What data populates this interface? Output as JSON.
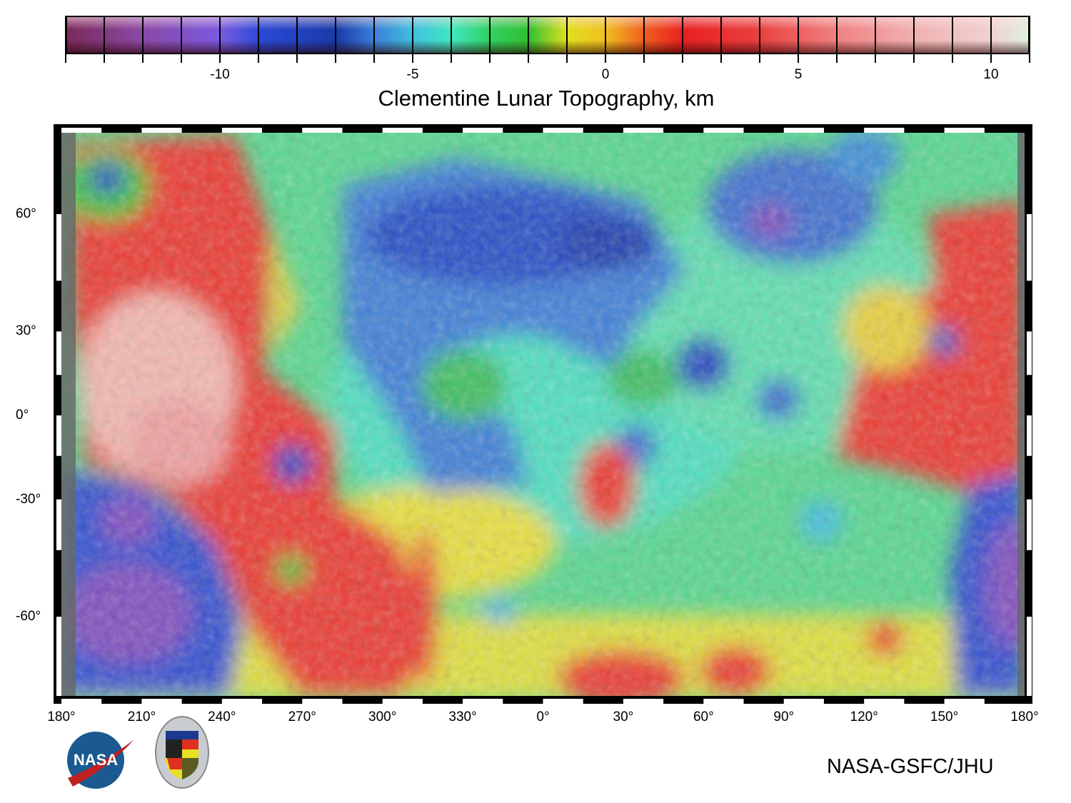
{
  "colorbar": {
    "title": "Clementine Lunar Topography, km",
    "range_km": [
      -14,
      11
    ],
    "step_km": 1,
    "tick_labels": [
      {
        "value": -10,
        "label": "-10"
      },
      {
        "value": -5,
        "label": "-5"
      },
      {
        "value": 0,
        "label": "0"
      },
      {
        "value": 5,
        "label": "5"
      },
      {
        "value": 10,
        "label": "10"
      }
    ],
    "color_stops": [
      {
        "km": -14,
        "color": "#7a2a5a"
      },
      {
        "km": -12,
        "color": "#8a4aa8"
      },
      {
        "km": -10,
        "color": "#7a5ae0"
      },
      {
        "km": -9,
        "color": "#2a4ad8"
      },
      {
        "km": -7,
        "color": "#1a3aa8"
      },
      {
        "km": -6,
        "color": "#3a80d8"
      },
      {
        "km": -5,
        "color": "#40c0e0"
      },
      {
        "km": -4,
        "color": "#40e8c0"
      },
      {
        "km": -3,
        "color": "#30d060"
      },
      {
        "km": -2,
        "color": "#30c030"
      },
      {
        "km": -1,
        "color": "#e0e020"
      },
      {
        "km": 0,
        "color": "#f0c020"
      },
      {
        "km": 1,
        "color": "#f06020"
      },
      {
        "km": 2,
        "color": "#e82020"
      },
      {
        "km": 4,
        "color": "#e84040"
      },
      {
        "km": 6,
        "color": "#f08080"
      },
      {
        "km": 8,
        "color": "#f0b0b0"
      },
      {
        "km": 10,
        "color": "#f0d0d0"
      },
      {
        "km": 11,
        "color": "#e0f0e0"
      }
    ]
  },
  "map": {
    "projection": "mercator",
    "lon_labels": [
      "180°",
      "210°",
      "240°",
      "270°",
      "300°",
      "330°",
      "0°",
      "30°",
      "60°",
      "90°",
      "120°",
      "150°",
      "180°"
    ],
    "lat_labels": [
      {
        "lat": 60,
        "label": "60°"
      },
      {
        "lat": 30,
        "label": "30°"
      },
      {
        "lat": 0,
        "label": "0°"
      },
      {
        "lat": -30,
        "label": "-30°"
      },
      {
        "lat": -60,
        "label": "-60°"
      }
    ]
  },
  "logos": {
    "nasa": "NASA",
    "jhu": "JHU seal"
  },
  "credit": "NASA-GSFC/JHU"
}
